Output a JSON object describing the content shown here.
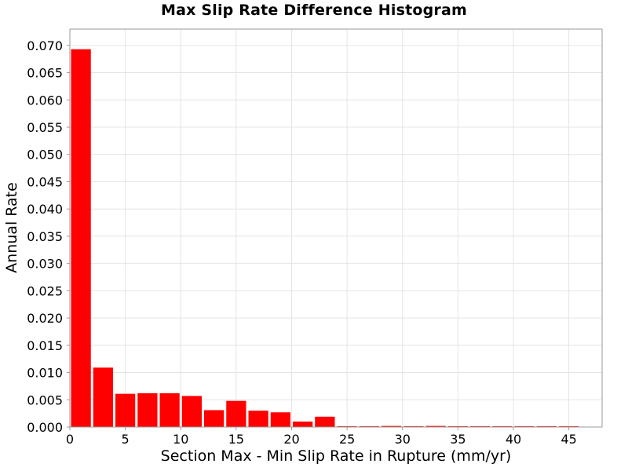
{
  "chart_data": {
    "type": "bar",
    "title": "Max Slip Rate Difference Histogram",
    "xlabel": "Section Max - Min Slip Rate in Rupture (mm/yr)",
    "ylabel": "Annual Rate",
    "xlim": [
      0,
      48
    ],
    "ylim": [
      0,
      0.073
    ],
    "x_ticks": [
      0,
      5,
      10,
      15,
      20,
      25,
      30,
      35,
      40,
      45
    ],
    "y_ticks": [
      "0.000",
      "0.005",
      "0.010",
      "0.015",
      "0.020",
      "0.025",
      "0.030",
      "0.035",
      "0.040",
      "0.045",
      "0.050",
      "0.055",
      "0.060",
      "0.065",
      "0.070"
    ],
    "bin_width": 2,
    "bar_color": "#ff0000",
    "grid": true,
    "grid_color": "#e4e4e4",
    "bins": [
      {
        "x": 1,
        "value": 0.0693
      },
      {
        "x": 3,
        "value": 0.0109
      },
      {
        "x": 5,
        "value": 0.0061
      },
      {
        "x": 7,
        "value": 0.0062
      },
      {
        "x": 9,
        "value": 0.0062
      },
      {
        "x": 11,
        "value": 0.0057
      },
      {
        "x": 13,
        "value": 0.0031
      },
      {
        "x": 15,
        "value": 0.0048
      },
      {
        "x": 17,
        "value": 0.003
      },
      {
        "x": 19,
        "value": 0.0027
      },
      {
        "x": 21,
        "value": 0.001
      },
      {
        "x": 23,
        "value": 0.0019
      },
      {
        "x": 25,
        "value": 0.0001
      },
      {
        "x": 27,
        "value": 0.0001
      },
      {
        "x": 29,
        "value": 0.0002
      },
      {
        "x": 31,
        "value": 0.0001
      },
      {
        "x": 33,
        "value": 0.0002
      },
      {
        "x": 35,
        "value": 5e-05
      },
      {
        "x": 37,
        "value": 5e-05
      },
      {
        "x": 39,
        "value": 5e-05
      },
      {
        "x": 41,
        "value": 3e-05
      },
      {
        "x": 43,
        "value": 3e-05
      },
      {
        "x": 45,
        "value": 2e-05
      }
    ]
  }
}
